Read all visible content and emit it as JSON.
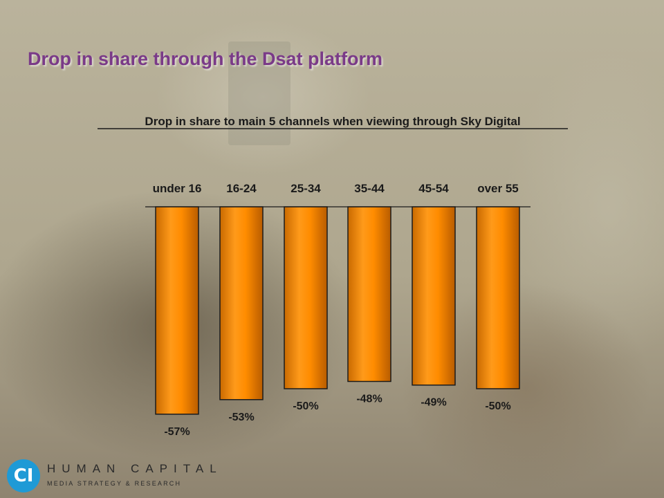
{
  "slide": {
    "title": "Drop in share through the Dsat platform"
  },
  "logo": {
    "name": "HUMAN CAPITAL",
    "tagline": "MEDIA STRATEGY & RESEARCH",
    "mark_color": "#1f9ad6"
  },
  "chart_data": {
    "type": "bar",
    "title": "Drop in share to main 5 channels when viewing through Sky Digital",
    "categories": [
      "under 16",
      "16-24",
      "25-34",
      "35-44",
      "45-54",
      "over 55"
    ],
    "values": [
      -57,
      -53,
      -50,
      -48,
      -49,
      -50
    ],
    "value_labels": [
      "-57%",
      "-53%",
      "-50%",
      "-48%",
      "-49%",
      "-50%"
    ],
    "ylim": [
      -60,
      0
    ],
    "grid": false,
    "legend": "none",
    "bar_color": "#ff8c00",
    "bar_edge": "#1a1a1a"
  }
}
